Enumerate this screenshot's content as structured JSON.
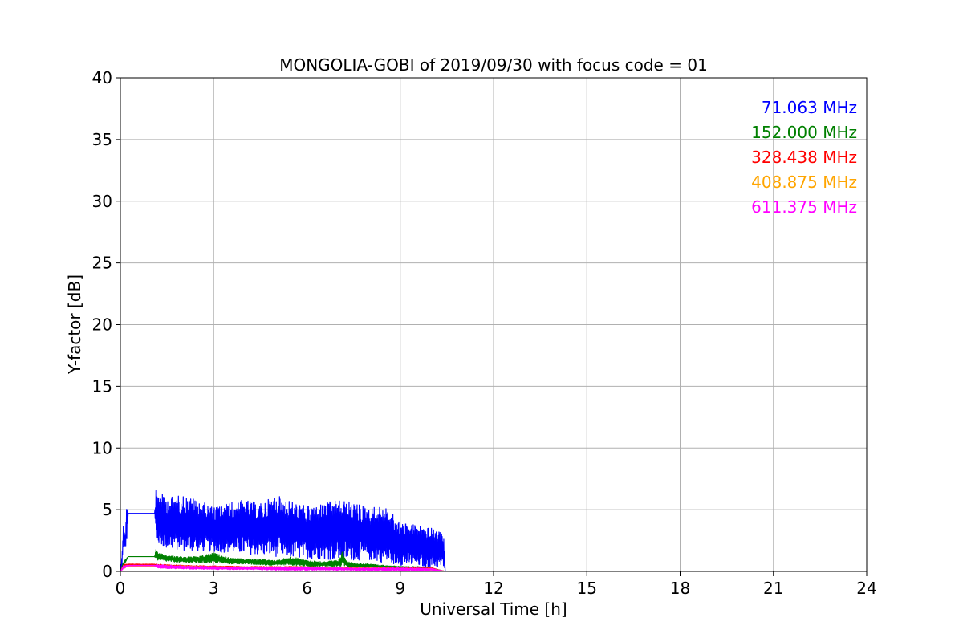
{
  "chart_data": {
    "type": "line",
    "title": "MONGOLIA-GOBI of 2019/09/30 with focus code = 01",
    "xlabel": "Universal Time [h]",
    "ylabel": "Y-factor [dB]",
    "xlim": [
      0,
      24
    ],
    "ylim": [
      0,
      40
    ],
    "xticks": [
      "0",
      "3",
      "6",
      "9",
      "12",
      "15",
      "18",
      "21",
      "24"
    ],
    "yticks": [
      "0",
      "5",
      "10",
      "15",
      "20",
      "25",
      "30",
      "35",
      "40"
    ],
    "grid": true,
    "legend_position": "top-right",
    "series": [
      {
        "name": "71.063 MHz",
        "color": "#0000ff",
        "x": [
          0.0,
          0.05,
          0.1,
          0.15,
          0.2,
          0.25,
          0.3,
          1.1,
          1.15,
          1.2,
          1.5,
          2.0,
          2.5,
          3.0,
          3.5,
          4.0,
          4.5,
          5.0,
          5.5,
          6.0,
          6.5,
          7.0,
          7.5,
          8.0,
          8.5,
          9.0,
          9.5,
          10.0,
          10.4,
          10.45
        ],
        "low": [
          0.0,
          0.3,
          2.0,
          2.0,
          2.0,
          4.7,
          4.7,
          4.7,
          2.5,
          2.2,
          1.8,
          1.7,
          1.6,
          1.6,
          1.5,
          1.4,
          1.3,
          1.2,
          1.1,
          1.0,
          1.0,
          0.9,
          0.9,
          0.9,
          0.7,
          0.5,
          0.4,
          0.3,
          0.3,
          0.0
        ],
        "high": [
          0.0,
          1.5,
          4.2,
          2.5,
          5.6,
          4.7,
          4.7,
          4.7,
          7.0,
          6.5,
          6.0,
          6.2,
          5.8,
          5.2,
          5.6,
          5.8,
          5.5,
          6.2,
          5.7,
          5.3,
          5.5,
          5.8,
          5.6,
          5.2,
          5.3,
          4.0,
          3.8,
          3.5,
          3.0,
          0.0
        ]
      },
      {
        "name": "152.000 MHz",
        "color": "#008000",
        "x": [
          0.0,
          0.1,
          0.25,
          1.1,
          1.15,
          1.2,
          1.5,
          2.0,
          2.5,
          3.0,
          3.5,
          4.0,
          4.5,
          5.0,
          5.5,
          6.0,
          6.5,
          7.0,
          7.15,
          7.3,
          7.5,
          8.0,
          8.5,
          9.0,
          9.5,
          10.0,
          10.45
        ],
        "low": [
          0.0,
          0.4,
          1.2,
          1.2,
          1.0,
          0.9,
          0.8,
          0.7,
          0.7,
          0.7,
          0.6,
          0.6,
          0.5,
          0.5,
          0.5,
          0.4,
          0.4,
          0.4,
          0.4,
          0.4,
          0.3,
          0.3,
          0.25,
          0.25,
          0.2,
          0.2,
          0.0
        ],
        "high": [
          0.0,
          0.8,
          1.2,
          1.2,
          1.9,
          1.5,
          1.3,
          1.2,
          1.2,
          1.5,
          1.1,
          1.0,
          1.0,
          0.9,
          1.2,
          0.9,
          0.8,
          0.9,
          1.7,
          0.8,
          0.7,
          0.6,
          0.5,
          0.4,
          0.4,
          0.3,
          0.0
        ]
      },
      {
        "name": "328.438 MHz",
        "color": "#ff0000",
        "x": [
          0.0,
          0.1,
          0.25,
          1.1,
          1.2,
          2.0,
          3.0,
          4.0,
          5.0,
          6.0,
          7.0,
          8.0,
          9.0,
          10.0,
          10.45
        ],
        "low": [
          0.0,
          0.3,
          0.5,
          0.5,
          0.35,
          0.3,
          0.3,
          0.25,
          0.25,
          0.2,
          0.2,
          0.2,
          0.15,
          0.15,
          0.0
        ],
        "high": [
          0.0,
          0.6,
          0.6,
          0.6,
          0.6,
          0.5,
          0.45,
          0.4,
          0.4,
          0.4,
          0.35,
          0.35,
          0.3,
          0.3,
          0.0
        ]
      },
      {
        "name": "408.875 MHz",
        "color": "#ffa500",
        "x": [
          0.0,
          0.1,
          0.25,
          1.1,
          1.2,
          2.0,
          3.0,
          4.0,
          5.0,
          6.0,
          7.0,
          8.0,
          9.0,
          10.0,
          10.45
        ],
        "low": [
          0.0,
          0.2,
          0.4,
          0.4,
          0.3,
          0.25,
          0.25,
          0.2,
          0.2,
          0.2,
          0.15,
          0.15,
          0.15,
          0.1,
          0.0
        ],
        "high": [
          0.0,
          0.5,
          0.5,
          0.5,
          0.5,
          0.45,
          0.4,
          0.35,
          0.35,
          0.35,
          0.3,
          0.3,
          0.25,
          0.25,
          0.0
        ]
      },
      {
        "name": "611.375 MHz",
        "color": "#ff00ff",
        "x": [
          0.0,
          0.1,
          0.25,
          1.1,
          1.2,
          2.0,
          3.0,
          4.0,
          5.0,
          6.0,
          7.0,
          8.0,
          9.0,
          10.0,
          10.45
        ],
        "low": [
          0.0,
          0.2,
          0.45,
          0.45,
          0.25,
          0.2,
          0.15,
          0.15,
          0.1,
          0.1,
          0.1,
          0.05,
          0.05,
          0.05,
          0.0
        ],
        "high": [
          0.0,
          0.5,
          0.5,
          0.5,
          0.55,
          0.45,
          0.4,
          0.35,
          0.35,
          0.35,
          0.3,
          0.3,
          0.3,
          0.25,
          0.0
        ]
      }
    ]
  }
}
